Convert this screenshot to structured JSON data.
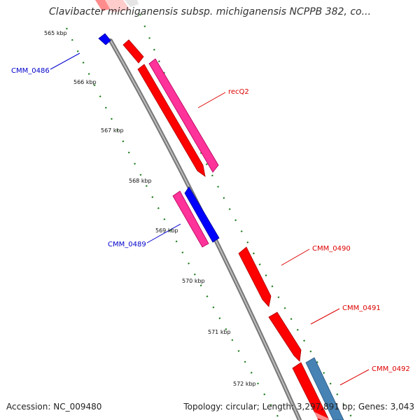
{
  "title": "Clavibacter michiganensis subsp. michiganensis NCPPB 382, co...",
  "accession": "Accession: NC_009480",
  "summary": "Topology: circular; Length: 3,297,891 bp; Genes: 3,043",
  "colors": {
    "forward_cds": "#ff0000",
    "reverse_cds": "#0000ff",
    "forward_other": "#ff3399",
    "reverse_other": "#4682b4",
    "backbone": "#888888",
    "tick": "#1a7a1a"
  },
  "ticks": [
    "565 kbp",
    "566 kbp",
    "567 kbp",
    "568 kbp",
    "569 kbp",
    "570 kbp",
    "571 kbp",
    "572 kbp"
  ],
  "gene_labels": [
    {
      "text": "CMM_0486",
      "color": "#0000cc"
    },
    {
      "text": "recQ2",
      "color": "#dd0000"
    },
    {
      "text": "CMM_0489",
      "color": "#0000cc"
    },
    {
      "text": "CMM_0490",
      "color": "#dd0000"
    },
    {
      "text": "CMM_0491",
      "color": "#dd0000"
    },
    {
      "text": "CMM_0492",
      "color": "#dd0000"
    }
  ]
}
